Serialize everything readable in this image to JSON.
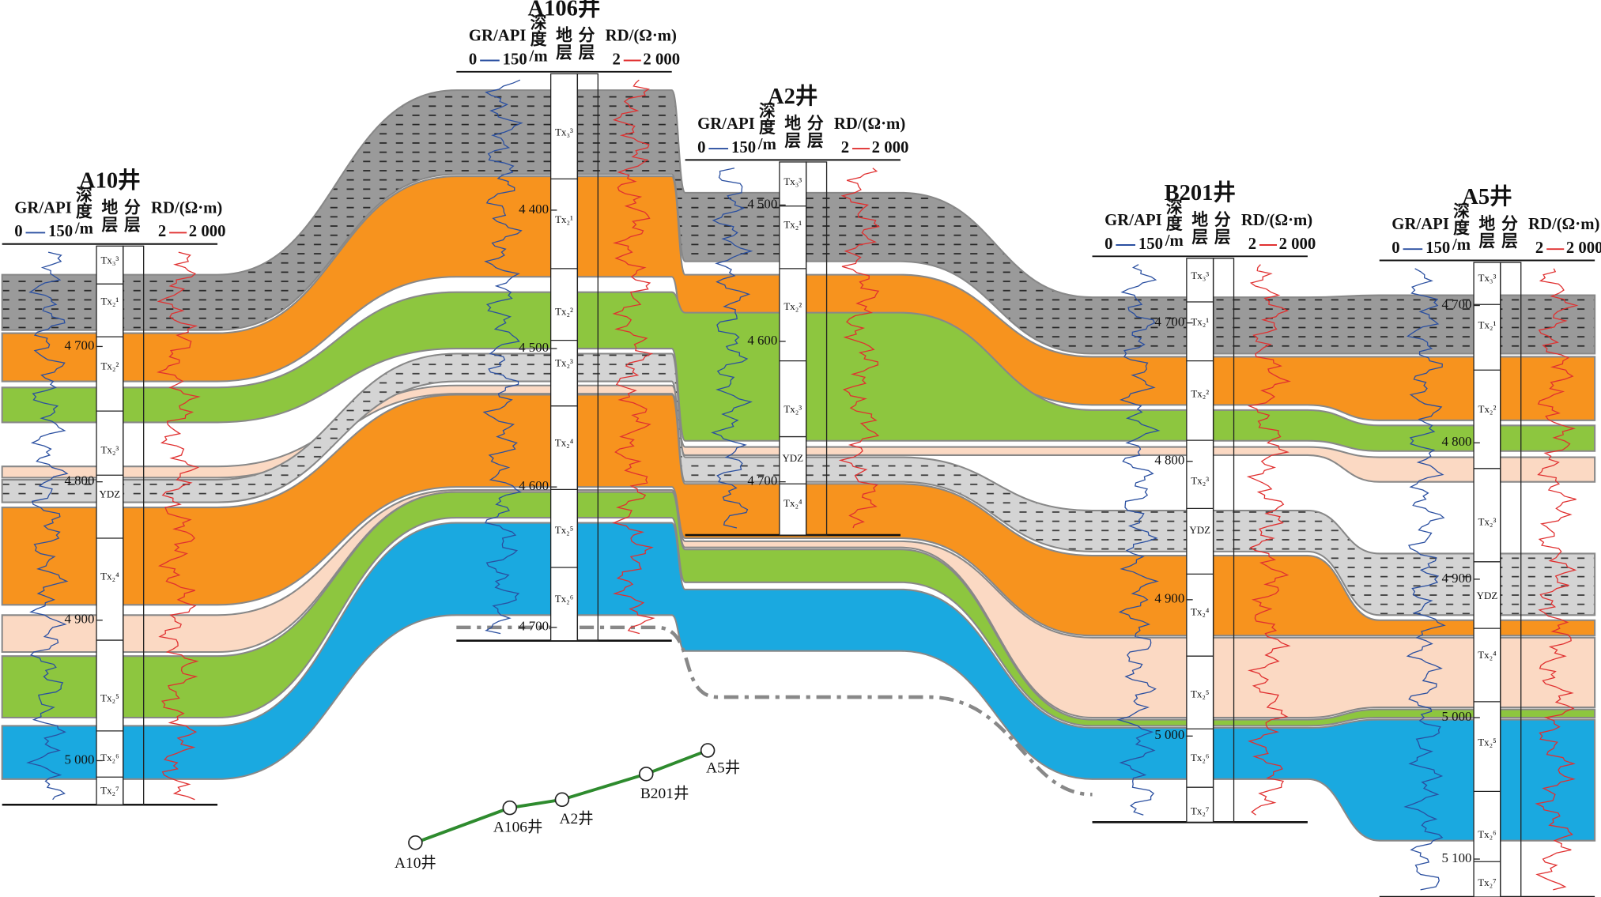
{
  "wells": [
    {
      "name": "A10井",
      "header": {
        "gr": "GR/API",
        "gr_min": "0",
        "gr_max": "150",
        "depth": [
          "深",
          "度",
          "/m"
        ],
        "stratum": [
          "地",
          "层"
        ],
        "layer": [
          "分",
          "层"
        ],
        "rd": "RD/(Ω·m)",
        "rd_min": "2",
        "rd_max": "2 000"
      },
      "depths": [
        "4 700",
        "4 800",
        "4 900",
        "5 000"
      ],
      "formations": [
        "Tx₃³",
        "Tx₂¹",
        "Tx₂²",
        "Tx₂³",
        "YDZ",
        "Tx₂⁴",
        "Tx₂⁵",
        "Tx₂⁶",
        "Tx₂⁷"
      ]
    },
    {
      "name": "A106井",
      "header": {
        "gr": "GR/API",
        "gr_min": "0",
        "gr_max": "150",
        "depth": [
          "深",
          "度",
          "/m"
        ],
        "stratum": [
          "地",
          "层"
        ],
        "layer": [
          "分",
          "层"
        ],
        "rd": "RD/(Ω·m)",
        "rd_min": "2",
        "rd_max": "2 000"
      },
      "depths": [
        "4 400",
        "4 500",
        "4 600",
        "4 700"
      ],
      "formations": [
        "Tx₃³",
        "Tx₂¹",
        "Tx₂²",
        "Tx₂³",
        "Tx₂⁴",
        "Tx₂⁵",
        "Tx₂⁶"
      ]
    },
    {
      "name": "A2井",
      "header": {
        "gr": "GR/API",
        "gr_min": "0",
        "gr_max": "150",
        "depth": [
          "深",
          "度",
          "/m"
        ],
        "stratum": [
          "地",
          "层"
        ],
        "layer": [
          "分",
          "层"
        ],
        "rd": "RD/(Ω·m)",
        "rd_min": "2",
        "rd_max": "2 000"
      },
      "depths": [
        "4 500",
        "4 600",
        "4 700"
      ],
      "formations": [
        "Tx₃³",
        "Tx₂¹",
        "Tx₂²",
        "Tx₂³",
        "YDZ",
        "Tx₂⁴"
      ]
    },
    {
      "name": "B201井",
      "header": {
        "gr": "GR/API",
        "gr_min": "0",
        "gr_max": "150",
        "depth": [
          "深",
          "度",
          "/m"
        ],
        "stratum": [
          "地",
          "层"
        ],
        "layer": [
          "分",
          "层"
        ],
        "rd": "RD/(Ω·m)",
        "rd_min": "2",
        "rd_max": "2 000"
      },
      "depths": [
        "4 700",
        "4 800",
        "4 900",
        "5 000"
      ],
      "formations": [
        "Tx₃³",
        "Tx₂¹",
        "Tx₂²",
        "Tx₂³",
        "YDZ",
        "Tx₂⁴",
        "Tx₂⁵",
        "Tx₂⁶",
        "Tx₂⁷"
      ]
    },
    {
      "name": "A5井",
      "header": {
        "gr": "GR/API",
        "gr_min": "0",
        "gr_max": "150",
        "depth": [
          "深",
          "度",
          "/m"
        ],
        "stratum": [
          "地",
          "层"
        ],
        "layer": [
          "分",
          "层"
        ],
        "rd": "RD/(Ω·m)",
        "rd_min": "2",
        "rd_max": "2 000"
      },
      "depths": [
        "4 700",
        "4 800",
        "4 900",
        "5 000",
        "5 100"
      ],
      "formations": [
        "Tx₃³",
        "Tx₂¹",
        "Tx₂²",
        "Tx₂³",
        "YDZ",
        "Tx₂⁴",
        "Tx₂⁵",
        "Tx₂⁶",
        "Tx₂⁷"
      ]
    }
  ],
  "map": {
    "wells": [
      "A10井",
      "A106井",
      "A2井",
      "B201井",
      "A5井"
    ]
  }
}
